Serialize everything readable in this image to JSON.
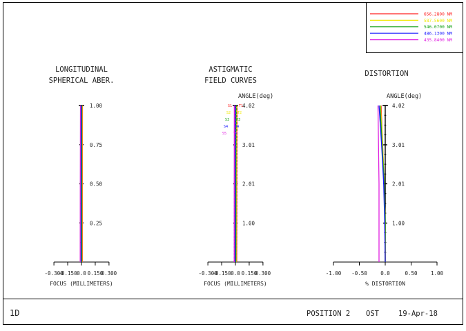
{
  "legend": {
    "entries": [
      {
        "label": "656.2800 NM",
        "color": "#ff2020"
      },
      {
        "label": "587.5600 NM",
        "color": "#f0e800"
      },
      {
        "label": "546.0700 NM",
        "color": "#10a010"
      },
      {
        "label": "486.1300 NM",
        "color": "#1818ff"
      },
      {
        "label": "435.8400 NM",
        "color": "#e020e0"
      }
    ]
  },
  "footer": {
    "id_label": "1D",
    "position": "POSITION 2",
    "system": "OST",
    "date": "19-Apr-18"
  },
  "chart_data": [
    {
      "type": "line",
      "title": "LONGITUDINAL SPHERICAL ABER.",
      "title_lines": [
        "LONGITUDINAL",
        "SPHERICAL ABER."
      ],
      "xlabel": "FOCUS (MILLIMETERS)",
      "ylabel": "",
      "xlim": [
        -0.3,
        0.3
      ],
      "ylim": [
        0,
        1.0
      ],
      "x_ticks": [
        "-0.300",
        "-0.150",
        "0.0",
        "0.150",
        "0.300"
      ],
      "y_ticks": [
        "0.25",
        "0.50",
        "0.75",
        "1.00"
      ],
      "y_tick_values": [
        0.25,
        0.5,
        0.75,
        1.0
      ],
      "series": [
        {
          "wavelength": "656.2800 NM",
          "color": "#ff2020",
          "points": [
            [
              0.01,
              0.0
            ],
            [
              0.01,
              0.5
            ],
            [
              0.011,
              1.0
            ]
          ]
        },
        {
          "wavelength": "587.5600 NM",
          "color": "#f0e800",
          "points": [
            [
              0.006,
              0.0
            ],
            [
              0.006,
              0.5
            ],
            [
              0.007,
              1.0
            ]
          ]
        },
        {
          "wavelength": "546.0700 NM",
          "color": "#10a010",
          "points": [
            [
              0.002,
              0.0
            ],
            [
              0.002,
              0.5
            ],
            [
              0.003,
              1.0
            ]
          ]
        },
        {
          "wavelength": "486.1300 NM",
          "color": "#1818ff",
          "points": [
            [
              -0.005,
              0.0
            ],
            [
              -0.005,
              0.5
            ],
            [
              -0.003,
              1.0
            ]
          ]
        },
        {
          "wavelength": "435.8400 NM",
          "color": "#e020e0",
          "points": [
            [
              -0.014,
              0.0
            ],
            [
              -0.013,
              0.5
            ],
            [
              -0.011,
              1.0
            ]
          ]
        }
      ]
    },
    {
      "type": "line",
      "title": "ASTIGMATIC FIELD CURVES",
      "title_lines": [
        "ASTIGMATIC",
        "FIELD CURVES"
      ],
      "xlabel": "FOCUS (MILLIMETERS)",
      "ylabel": "ANGLE(deg)",
      "xlim": [
        -0.3,
        0.3
      ],
      "ylim": [
        0,
        4.02
      ],
      "x_ticks": [
        "-0.300",
        "-0.150",
        "0.0",
        "0.150",
        "0.300"
      ],
      "y_ticks": [
        "1.00",
        "2.01",
        "3.01",
        "4.02"
      ],
      "y_tick_values": [
        1.0,
        2.01,
        3.01,
        4.02
      ],
      "marker_labels": [
        "S1",
        "T1",
        "S2",
        "T2",
        "S3",
        "T3",
        "S4",
        "T4",
        "S5",
        "T5"
      ],
      "series": [
        {
          "name": "S",
          "wavelength": "656.2800 NM",
          "color": "#ff2020",
          "points": [
            [
              0.014,
              0.0
            ],
            [
              0.014,
              2.0
            ],
            [
              0.015,
              4.02
            ]
          ]
        },
        {
          "name": "T",
          "wavelength": "656.2800 NM",
          "color": "#ff2020",
          "points": [
            [
              0.014,
              0.0
            ],
            [
              0.016,
              2.0
            ],
            [
              0.02,
              4.02
            ]
          ]
        },
        {
          "name": "S",
          "wavelength": "587.5600 NM",
          "color": "#f0e800",
          "points": [
            [
              0.008,
              0.0
            ],
            [
              0.008,
              2.0
            ],
            [
              0.009,
              4.02
            ]
          ]
        },
        {
          "name": "T",
          "wavelength": "587.5600 NM",
          "color": "#f0e800",
          "points": [
            [
              0.008,
              0.0
            ],
            [
              0.01,
              2.0
            ],
            [
              0.014,
              4.02
            ]
          ]
        },
        {
          "name": "S",
          "wavelength": "546.0700 NM",
          "color": "#10a010",
          "points": [
            [
              0.004,
              0.0
            ],
            [
              0.004,
              2.0
            ],
            [
              0.004,
              4.02
            ]
          ]
        },
        {
          "name": "T",
          "wavelength": "546.0700 NM",
          "color": "#10a010",
          "points": [
            [
              0.004,
              0.0
            ],
            [
              0.006,
              2.0
            ],
            [
              0.009,
              4.02
            ]
          ]
        },
        {
          "name": "S",
          "wavelength": "486.1300 NM",
          "color": "#1818ff",
          "points": [
            [
              -0.004,
              0.0
            ],
            [
              -0.004,
              2.0
            ],
            [
              -0.004,
              4.02
            ]
          ]
        },
        {
          "name": "T",
          "wavelength": "486.1300 NM",
          "color": "#1818ff",
          "points": [
            [
              -0.004,
              0.0
            ],
            [
              -0.002,
              2.0
            ],
            [
              0.001,
              4.02
            ]
          ]
        },
        {
          "name": "S",
          "wavelength": "435.8400 NM",
          "color": "#e020e0",
          "points": [
            [
              -0.013,
              0.0
            ],
            [
              -0.013,
              2.0
            ],
            [
              -0.012,
              4.02
            ]
          ]
        },
        {
          "name": "T",
          "wavelength": "435.8400 NM",
          "color": "#e020e0",
          "points": [
            [
              -0.013,
              0.0
            ],
            [
              -0.011,
              2.0
            ],
            [
              -0.008,
              4.02
            ]
          ]
        }
      ]
    },
    {
      "type": "line",
      "title": "DISTORTION",
      "title_lines": [
        "DISTORTION"
      ],
      "xlabel": "% DISTORTION",
      "ylabel": "ANGLE(deg)",
      "xlim": [
        -1.0,
        1.0
      ],
      "ylim": [
        0,
        4.02
      ],
      "x_ticks": [
        "-1.00",
        "-0.50",
        "0.0",
        "0.50",
        "1.00"
      ],
      "y_ticks": [
        "1.00",
        "2.01",
        "3.01",
        "4.02"
      ],
      "y_tick_values": [
        1.0,
        2.01,
        3.01,
        4.02
      ],
      "series": [
        {
          "wavelength": "656.2800 NM",
          "color": "#ff2020",
          "points": [
            [
              0.0,
              0.0
            ],
            [
              0.0,
              1.0
            ],
            [
              -0.02,
              2.01
            ],
            [
              -0.05,
              3.01
            ],
            [
              -0.08,
              4.02
            ]
          ]
        },
        {
          "wavelength": "587.5600 NM",
          "color": "#f0e800",
          "points": [
            [
              0.0,
              0.0
            ],
            [
              0.0,
              1.0
            ],
            [
              -0.02,
              2.01
            ],
            [
              -0.05,
              3.01
            ],
            [
              -0.09,
              4.02
            ]
          ]
        },
        {
          "wavelength": "546.0700 NM",
          "color": "#10a010",
          "points": [
            [
              0.0,
              0.0
            ],
            [
              0.0,
              1.0
            ],
            [
              -0.02,
              2.01
            ],
            [
              -0.06,
              3.01
            ],
            [
              -0.1,
              4.02
            ]
          ]
        },
        {
          "wavelength": "486.1300 NM",
          "color": "#1818ff",
          "points": [
            [
              0.0,
              0.0
            ],
            [
              -0.01,
              1.0
            ],
            [
              -0.03,
              2.01
            ],
            [
              -0.07,
              3.01
            ],
            [
              -0.12,
              4.02
            ]
          ]
        },
        {
          "wavelength": "435.8400 NM",
          "color": "#e020e0",
          "points": [
            [
              -0.12,
              0.0
            ],
            [
              -0.12,
              1.0
            ],
            [
              -0.12,
              2.01
            ],
            [
              -0.13,
              3.01
            ],
            [
              -0.14,
              4.02
            ]
          ]
        }
      ]
    }
  ]
}
